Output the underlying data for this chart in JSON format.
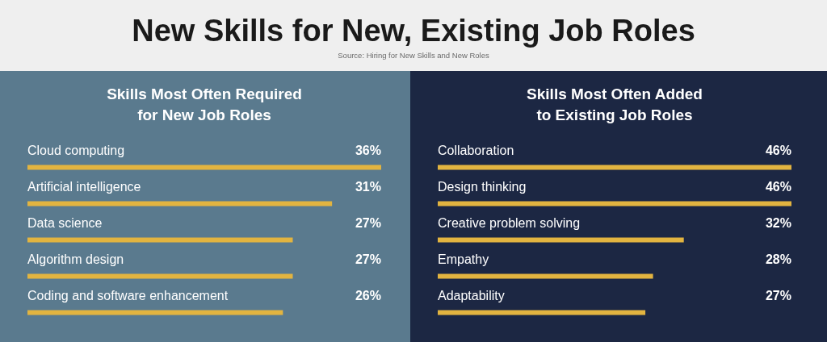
{
  "chart_data": [
    {
      "type": "other",
      "title": "New Skills for New, Existing Job Roles",
      "annotations": [
        "Source: Hiring for New Skills and New Roles"
      ]
    },
    {
      "type": "bar",
      "orientation": "horizontal",
      "title": "Skills Most Often Required\nfor New Job Roles",
      "categories": [
        "Cloud computing",
        "Artificial intelligence",
        "Data science",
        "Algorithm design",
        "Coding and software enhancement"
      ],
      "values": [
        36,
        31,
        27,
        27,
        26
      ],
      "value_labels": [
        "36%",
        "31%",
        "27%",
        "27%",
        "26%"
      ],
      "color": "#e2b440"
    },
    {
      "type": "bar",
      "orientation": "horizontal",
      "title": "Skills Most Often Added\nto Existing Job Roles",
      "categories": [
        "Collaboration",
        "Design thinking",
        "Creative problem solving",
        "Empathy",
        "Adaptability"
      ],
      "values": [
        46,
        46,
        32,
        28,
        27
      ],
      "value_labels": [
        "46%",
        "46%",
        "32%",
        "28%",
        "27%"
      ],
      "color": "#e2b440"
    }
  ]
}
